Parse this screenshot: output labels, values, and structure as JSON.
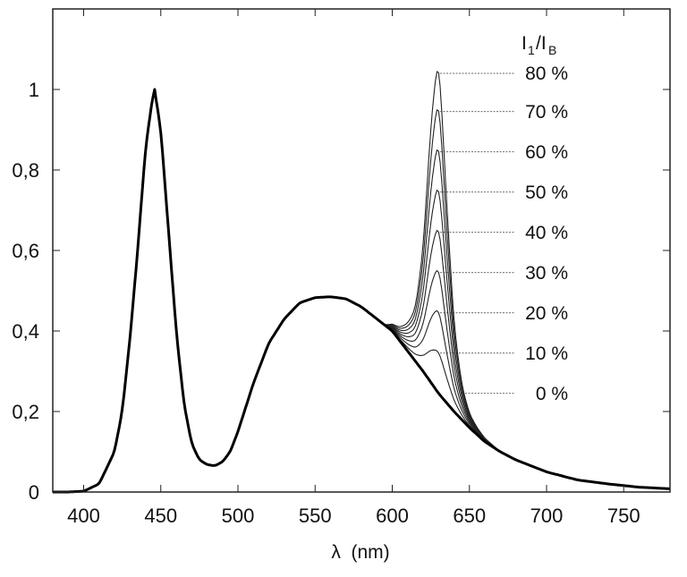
{
  "chart_data": {
    "type": "line",
    "title": "",
    "xlabel": "λ  (nm)",
    "ylabel": "",
    "xlim": [
      380,
      780
    ],
    "ylim": [
      0,
      1.2
    ],
    "grid": false,
    "x_ticks": [
      400,
      450,
      500,
      550,
      600,
      650,
      700,
      750
    ],
    "y_ticks": [
      0,
      0.2,
      0.4,
      0.6,
      0.8,
      1
    ],
    "y_tick_labels": [
      "0",
      "0,2",
      "0,4",
      "0,6",
      "0,8",
      "1"
    ],
    "legend_title": {
      "main": "I",
      "sub1": "1",
      "slash": "/I",
      "sub2": "B"
    },
    "legend_placement": "top-right",
    "base_spectrum": {
      "x": [
        380,
        390,
        400,
        410,
        420,
        425,
        430,
        435,
        440,
        445,
        446,
        450,
        455,
        460,
        465,
        470,
        475,
        480,
        485,
        490,
        495,
        500,
        510,
        520,
        530,
        540,
        550,
        560,
        570,
        580,
        590,
        600,
        610,
        620,
        630,
        640,
        650,
        660,
        670,
        680,
        690,
        700,
        720,
        740,
        760,
        780
      ],
      "y": [
        0,
        0,
        0.002,
        0.02,
        0.1,
        0.2,
        0.38,
        0.6,
        0.85,
        0.99,
        1.0,
        0.9,
        0.65,
        0.4,
        0.22,
        0.12,
        0.08,
        0.068,
        0.065,
        0.075,
        0.1,
        0.15,
        0.27,
        0.37,
        0.43,
        0.47,
        0.483,
        0.485,
        0.48,
        0.46,
        0.43,
        0.4,
        0.35,
        0.3,
        0.245,
        0.2,
        0.16,
        0.125,
        0.1,
        0.08,
        0.065,
        0.05,
        0.03,
        0.02,
        0.012,
        0.008
      ]
    },
    "red_component_profile": {
      "x": [
        595,
        600,
        605,
        610,
        615,
        620,
        625,
        630,
        635,
        640,
        645,
        650,
        655,
        660,
        670
      ],
      "y": [
        0,
        0.02,
        0.04,
        0.08,
        0.15,
        0.35,
        0.75,
        1.0,
        0.6,
        0.25,
        0.1,
        0.04,
        0.02,
        0.01,
        0
      ]
    },
    "series": [
      {
        "name": "0 %",
        "amplitude": 0.0,
        "peak": 0.245
      },
      {
        "name": "10 %",
        "amplitude": 0.1,
        "peak": 0.345
      },
      {
        "name": "20 %",
        "amplitude": 0.2,
        "peak": 0.445
      },
      {
        "name": "30 %",
        "amplitude": 0.3,
        "peak": 0.545
      },
      {
        "name": "40 %",
        "amplitude": 0.4,
        "peak": 0.645
      },
      {
        "name": "50 %",
        "amplitude": 0.5,
        "peak": 0.745
      },
      {
        "name": "60 %",
        "amplitude": 0.6,
        "peak": 0.845
      },
      {
        "name": "70 %",
        "amplitude": 0.7,
        "peak": 0.945
      },
      {
        "name": "80 %",
        "amplitude": 0.795,
        "peak": 1.04
      }
    ]
  }
}
